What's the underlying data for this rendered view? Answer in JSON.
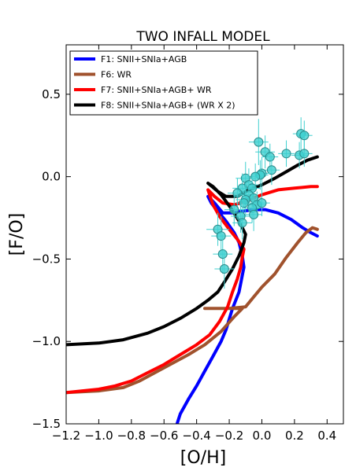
{
  "chart_data": {
    "type": "line",
    "title": "TWO INFALL MODEL",
    "xlabel": "[O/H]",
    "ylabel": "[F/O]",
    "xlim": [
      -1.2,
      0.5
    ],
    "ylim": [
      -1.5,
      0.8
    ],
    "xticks": [
      -1.2,
      -1.0,
      -0.8,
      -0.6,
      -0.4,
      -0.2,
      0.0,
      0.2,
      0.4
    ],
    "xtick_labels": [
      "−1.2",
      "−1.0",
      "−0.8",
      "−0.6",
      "−0.4",
      "−0.2",
      "0.0",
      "0.2",
      "0.4"
    ],
    "yticks": [
      -1.5,
      -1.0,
      -0.5,
      0.0,
      0.5
    ],
    "ytick_labels": [
      "−1.5",
      "−1.0",
      "−0.5",
      "0.0",
      "0.5"
    ],
    "grid": false,
    "legend_position": "top-left",
    "series": [
      {
        "name": "F1: SNII+SNIa+AGB",
        "color": "#0000ff",
        "points": [
          [
            -0.52,
            -1.5
          ],
          [
            -0.5,
            -1.44
          ],
          [
            -0.45,
            -1.35
          ],
          [
            -0.4,
            -1.27
          ],
          [
            -0.35,
            -1.18
          ],
          [
            -0.3,
            -1.09
          ],
          [
            -0.25,
            -1.0
          ],
          [
            -0.22,
            -0.93
          ],
          [
            -0.18,
            -0.8
          ],
          [
            -0.14,
            -0.7
          ],
          [
            -0.12,
            -0.6
          ],
          [
            -0.11,
            -0.55
          ],
          [
            -0.12,
            -0.48
          ],
          [
            -0.14,
            -0.4
          ],
          [
            -0.17,
            -0.34
          ],
          [
            -0.22,
            -0.27
          ],
          [
            -0.27,
            -0.21
          ],
          [
            -0.31,
            -0.16
          ],
          [
            -0.33,
            -0.12
          ],
          [
            -0.29,
            -0.16
          ],
          [
            -0.24,
            -0.22
          ],
          [
            -0.18,
            -0.22
          ],
          [
            -0.12,
            -0.21
          ],
          [
            -0.05,
            -0.2
          ],
          [
            0.02,
            -0.2
          ],
          [
            0.1,
            -0.22
          ],
          [
            0.18,
            -0.26
          ],
          [
            0.25,
            -0.31
          ],
          [
            0.3,
            -0.34
          ],
          [
            0.34,
            -0.36
          ]
        ]
      },
      {
        "name": "F6: WR",
        "color": "#a0522d",
        "points": [
          [
            -1.2,
            -1.31
          ],
          [
            -1.0,
            -1.3
          ],
          [
            -0.85,
            -1.28
          ],
          [
            -0.75,
            -1.24
          ],
          [
            -0.6,
            -1.16
          ],
          [
            -0.45,
            -1.08
          ],
          [
            -0.35,
            -1.02
          ],
          [
            -0.25,
            -0.94
          ],
          [
            -0.17,
            -0.85
          ],
          [
            -0.12,
            -0.8
          ],
          [
            -0.35,
            -0.8
          ],
          [
            -0.2,
            -0.8
          ],
          [
            -0.1,
            -0.79
          ],
          [
            -0.05,
            -0.73
          ],
          [
            0.0,
            -0.67
          ],
          [
            0.08,
            -0.59
          ],
          [
            0.15,
            -0.49
          ],
          [
            0.22,
            -0.4
          ],
          [
            0.27,
            -0.34
          ],
          [
            0.31,
            -0.31
          ],
          [
            0.34,
            -0.32
          ]
        ]
      },
      {
        "name": "F7: SNII+SNIa+AGB+ WR",
        "color": "#ff0000",
        "points": [
          [
            -1.2,
            -1.31
          ],
          [
            -1.0,
            -1.29
          ],
          [
            -0.9,
            -1.27
          ],
          [
            -0.8,
            -1.24
          ],
          [
            -0.7,
            -1.19
          ],
          [
            -0.6,
            -1.14
          ],
          [
            -0.5,
            -1.08
          ],
          [
            -0.4,
            -1.02
          ],
          [
            -0.32,
            -0.96
          ],
          [
            -0.26,
            -0.88
          ],
          [
            -0.21,
            -0.79
          ],
          [
            -0.18,
            -0.7
          ],
          [
            -0.15,
            -0.62
          ],
          [
            -0.13,
            -0.55
          ],
          [
            -0.12,
            -0.49
          ],
          [
            -0.11,
            -0.44
          ],
          [
            -0.15,
            -0.38
          ],
          [
            -0.2,
            -0.32
          ],
          [
            -0.26,
            -0.24
          ],
          [
            -0.3,
            -0.17
          ],
          [
            -0.33,
            -0.08
          ],
          [
            -0.29,
            -0.12
          ],
          [
            -0.24,
            -0.16
          ],
          [
            -0.17,
            -0.17
          ],
          [
            -0.1,
            -0.15
          ],
          [
            0.0,
            -0.11
          ],
          [
            0.1,
            -0.08
          ],
          [
            0.2,
            -0.07
          ],
          [
            0.3,
            -0.06
          ],
          [
            0.34,
            -0.06
          ]
        ]
      },
      {
        "name": "F8: SNII+SNIa+AGB+ (WR X 2)",
        "color": "#000000",
        "points": [
          [
            -1.2,
            -1.02
          ],
          [
            -1.0,
            -1.01
          ],
          [
            -0.85,
            -0.99
          ],
          [
            -0.7,
            -0.95
          ],
          [
            -0.6,
            -0.91
          ],
          [
            -0.5,
            -0.86
          ],
          [
            -0.4,
            -0.8
          ],
          [
            -0.33,
            -0.75
          ],
          [
            -0.27,
            -0.7
          ],
          [
            -0.23,
            -0.64
          ],
          [
            -0.18,
            -0.56
          ],
          [
            -0.14,
            -0.48
          ],
          [
            -0.11,
            -0.4
          ],
          [
            -0.1,
            -0.35
          ],
          [
            -0.14,
            -0.27
          ],
          [
            -0.19,
            -0.19
          ],
          [
            -0.25,
            -0.11
          ],
          [
            -0.3,
            -0.06
          ],
          [
            -0.33,
            -0.04
          ],
          [
            -0.27,
            -0.09
          ],
          [
            -0.22,
            -0.12
          ],
          [
            -0.15,
            -0.12
          ],
          [
            -0.08,
            -0.08
          ],
          [
            0.0,
            -0.05
          ],
          [
            0.08,
            -0.01
          ],
          [
            0.15,
            0.03
          ],
          [
            0.22,
            0.07
          ],
          [
            0.28,
            0.1
          ],
          [
            0.34,
            0.12
          ]
        ]
      }
    ],
    "scatter": {
      "color": "#40d0d0",
      "points": [
        {
          "x": -0.02,
          "y": 0.21,
          "xerr": 0.06,
          "yerr": 0.14
        },
        {
          "x": 0.24,
          "y": 0.26,
          "xerr": 0.05,
          "yerr": 0.1
        },
        {
          "x": 0.26,
          "y": 0.25,
          "xerr": 0.05,
          "yerr": 0.09
        },
        {
          "x": 0.02,
          "y": 0.15,
          "xerr": 0.06,
          "yerr": 0.1
        },
        {
          "x": 0.05,
          "y": 0.12,
          "xerr": 0.05,
          "yerr": 0.08
        },
        {
          "x": 0.15,
          "y": 0.14,
          "xerr": 0.05,
          "yerr": 0.08
        },
        {
          "x": 0.23,
          "y": 0.13,
          "xerr": 0.05,
          "yerr": 0.08
        },
        {
          "x": 0.26,
          "y": 0.14,
          "xerr": 0.05,
          "yerr": 0.08
        },
        {
          "x": 0.06,
          "y": 0.04,
          "xerr": 0.05,
          "yerr": 0.09
        },
        {
          "x": 0.0,
          "y": 0.02,
          "xerr": 0.06,
          "yerr": 0.1
        },
        {
          "x": -0.01,
          "y": 0.01,
          "xerr": 0.05,
          "yerr": 0.09
        },
        {
          "x": -0.04,
          "y": 0.0,
          "xerr": 0.05,
          "yerr": 0.08
        },
        {
          "x": -0.1,
          "y": -0.01,
          "xerr": 0.06,
          "yerr": 0.1
        },
        {
          "x": -0.08,
          "y": -0.05,
          "xerr": 0.06,
          "yerr": 0.1
        },
        {
          "x": -0.12,
          "y": -0.07,
          "xerr": 0.06,
          "yerr": 0.09
        },
        {
          "x": -0.06,
          "y": -0.07,
          "xerr": 0.05,
          "yerr": 0.08
        },
        {
          "x": -0.15,
          "y": -0.1,
          "xerr": 0.06,
          "yerr": 0.09
        },
        {
          "x": -0.08,
          "y": -0.11,
          "xerr": 0.05,
          "yerr": 0.08
        },
        {
          "x": -0.05,
          "y": -0.13,
          "xerr": 0.05,
          "yerr": 0.08
        },
        {
          "x": -0.1,
          "y": -0.14,
          "xerr": 0.06,
          "yerr": 0.1
        },
        {
          "x": -0.03,
          "y": -0.17,
          "xerr": 0.05,
          "yerr": 0.08
        },
        {
          "x": -0.11,
          "y": -0.16,
          "xerr": 0.05,
          "yerr": 0.09
        },
        {
          "x": 0.0,
          "y": -0.16,
          "xerr": 0.05,
          "yerr": 0.08
        },
        {
          "x": -0.06,
          "y": -0.19,
          "xerr": 0.05,
          "yerr": 0.09
        },
        {
          "x": -0.17,
          "y": -0.2,
          "xerr": 0.06,
          "yerr": 0.1
        },
        {
          "x": -0.13,
          "y": -0.24,
          "xerr": 0.06,
          "yerr": 0.1
        },
        {
          "x": -0.05,
          "y": -0.23,
          "xerr": 0.05,
          "yerr": 0.1
        },
        {
          "x": -0.12,
          "y": -0.28,
          "xerr": 0.06,
          "yerr": 0.1
        },
        {
          "x": -0.27,
          "y": -0.32,
          "xerr": 0.07,
          "yerr": 0.1
        },
        {
          "x": -0.25,
          "y": -0.36,
          "xerr": 0.06,
          "yerr": 0.12
        },
        {
          "x": -0.24,
          "y": -0.47,
          "xerr": 0.06,
          "yerr": 0.12
        },
        {
          "x": -0.23,
          "y": -0.56,
          "xerr": 0.06,
          "yerr": 0.12
        }
      ]
    }
  }
}
